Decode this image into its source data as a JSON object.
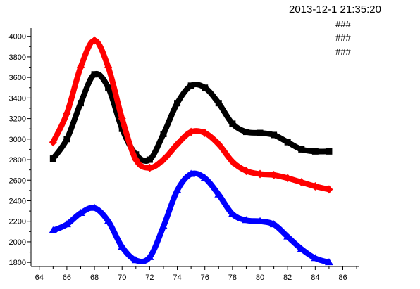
{
  "header": {
    "timestamp": "2013-12-1 21:35:20"
  },
  "legend": {
    "entries": [
      "###",
      "###",
      "###"
    ]
  },
  "chart_data": {
    "type": "line",
    "title": "",
    "xlabel": "",
    "ylabel": "",
    "xlim": [
      63.4,
      87.2
    ],
    "ylim": [
      1760,
      4080
    ],
    "xticks": [
      64,
      66,
      68,
      70,
      72,
      74,
      76,
      78,
      80,
      82,
      84,
      86
    ],
    "yticks": [
      1800,
      2000,
      2200,
      2400,
      2600,
      2800,
      3000,
      3200,
      3400,
      3600,
      3800,
      4000
    ],
    "grid": false,
    "legend_position": "top-right",
    "series": [
      {
        "color": "#000000",
        "marker": "square",
        "x": [
          65,
          66,
          67,
          68,
          69,
          70,
          71,
          72,
          73,
          74,
          75,
          76,
          77,
          78,
          79,
          80,
          81,
          82,
          83,
          84,
          85
        ],
        "y": [
          2810,
          3000,
          3350,
          3630,
          3500,
          3100,
          2850,
          2800,
          3050,
          3350,
          3520,
          3500,
          3350,
          3150,
          3070,
          3060,
          3040,
          2970,
          2900,
          2880,
          2880
        ]
      },
      {
        "color": "#ff0000",
        "marker": "diamond",
        "x": [
          65,
          66,
          67,
          68,
          69,
          70,
          71,
          72,
          73,
          74,
          75,
          76,
          77,
          78,
          79,
          80,
          81,
          82,
          83,
          84,
          85
        ],
        "y": [
          2970,
          3250,
          3700,
          3960,
          3700,
          3200,
          2800,
          2720,
          2800,
          2950,
          3070,
          3060,
          2950,
          2780,
          2690,
          2660,
          2650,
          2620,
          2580,
          2540,
          2510
        ]
      },
      {
        "color": "#0000ff",
        "marker": "triangle",
        "x": [
          65,
          66,
          67,
          68,
          69,
          70,
          71,
          72,
          73,
          74,
          75,
          76,
          77,
          78,
          79,
          80,
          81,
          82,
          83,
          84,
          85
        ],
        "y": [
          2110,
          2170,
          2280,
          2330,
          2200,
          1950,
          1820,
          1850,
          2150,
          2500,
          2660,
          2620,
          2460,
          2270,
          2210,
          2200,
          2170,
          2050,
          1930,
          1840,
          1800
        ]
      }
    ]
  }
}
